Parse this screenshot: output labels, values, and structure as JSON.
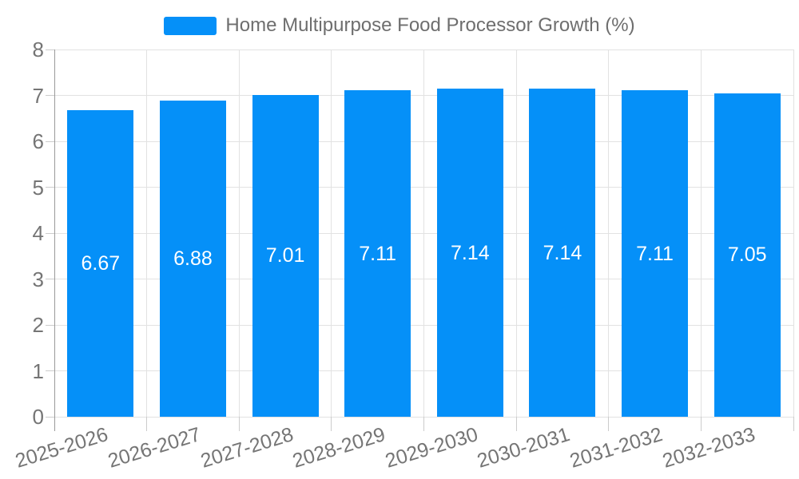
{
  "legend": {
    "label": "Home Multipurpose Food Processor Growth (%)",
    "swatch_color": "#0590f8"
  },
  "chart_data": {
    "type": "bar",
    "title": "Home Multipurpose Food Processor Growth (%)",
    "categories": [
      "2025-2026",
      "2026-2027",
      "2027-2028",
      "2028-2029",
      "2029-2030",
      "2030-2031",
      "2031-2032",
      "2032-2033"
    ],
    "values": [
      6.67,
      6.88,
      7.01,
      7.11,
      7.14,
      7.14,
      7.11,
      7.05
    ],
    "bar_labels": [
      "6.67",
      "6.88",
      "7.01",
      "7.11",
      "7.14",
      "7.14",
      "7.11",
      "7.05"
    ],
    "xlabel": "",
    "ylabel": "",
    "ylim": [
      0,
      8
    ],
    "ytick_values": [
      0,
      1,
      2,
      3,
      4,
      5,
      6,
      7,
      8
    ],
    "ytick_labels": [
      "0",
      "1",
      "2",
      "3",
      "4",
      "5",
      "6",
      "7",
      "8"
    ],
    "grid": true,
    "legend_position": "top",
    "x_label_rotation_deg": -17,
    "colors": {
      "bar": "#0590f8",
      "bar_label_text": "#ffffff",
      "grid_line": "#e2e2e2",
      "axis_line": "#9a9a9a",
      "tick_mark": "#cccccc",
      "axis_text": "#757575",
      "legend_text": "#6e6e6e",
      "background": "#ffffff"
    }
  }
}
